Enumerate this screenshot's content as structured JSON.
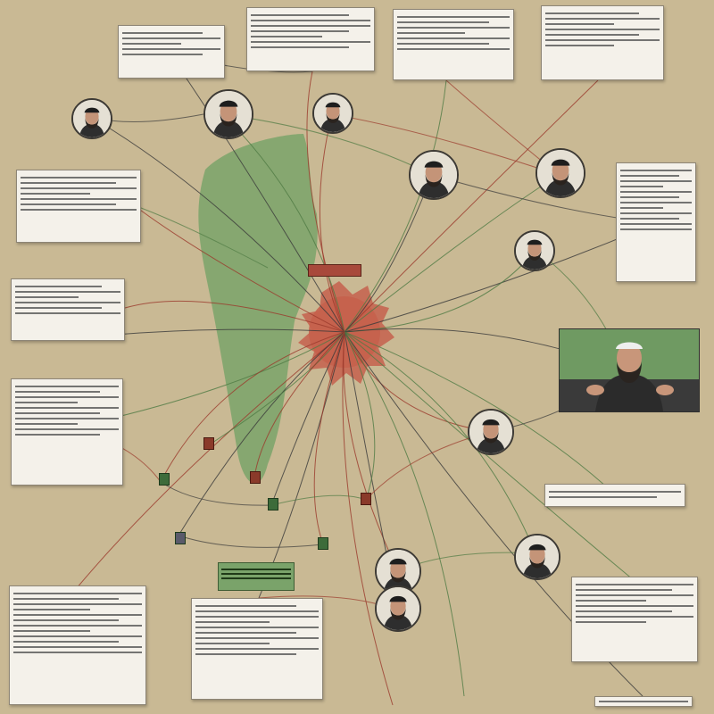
{
  "colors": {
    "background": "#c9b994",
    "region": "#7aa36a",
    "hub": "#c5604d",
    "link_red": "#9b3a2c",
    "link_dark": "#3a3a3a",
    "link_green": "#4f7a43"
  },
  "icons": {
    "portrait": "person-portrait-icon",
    "marker": "map-marker-icon"
  }
}
